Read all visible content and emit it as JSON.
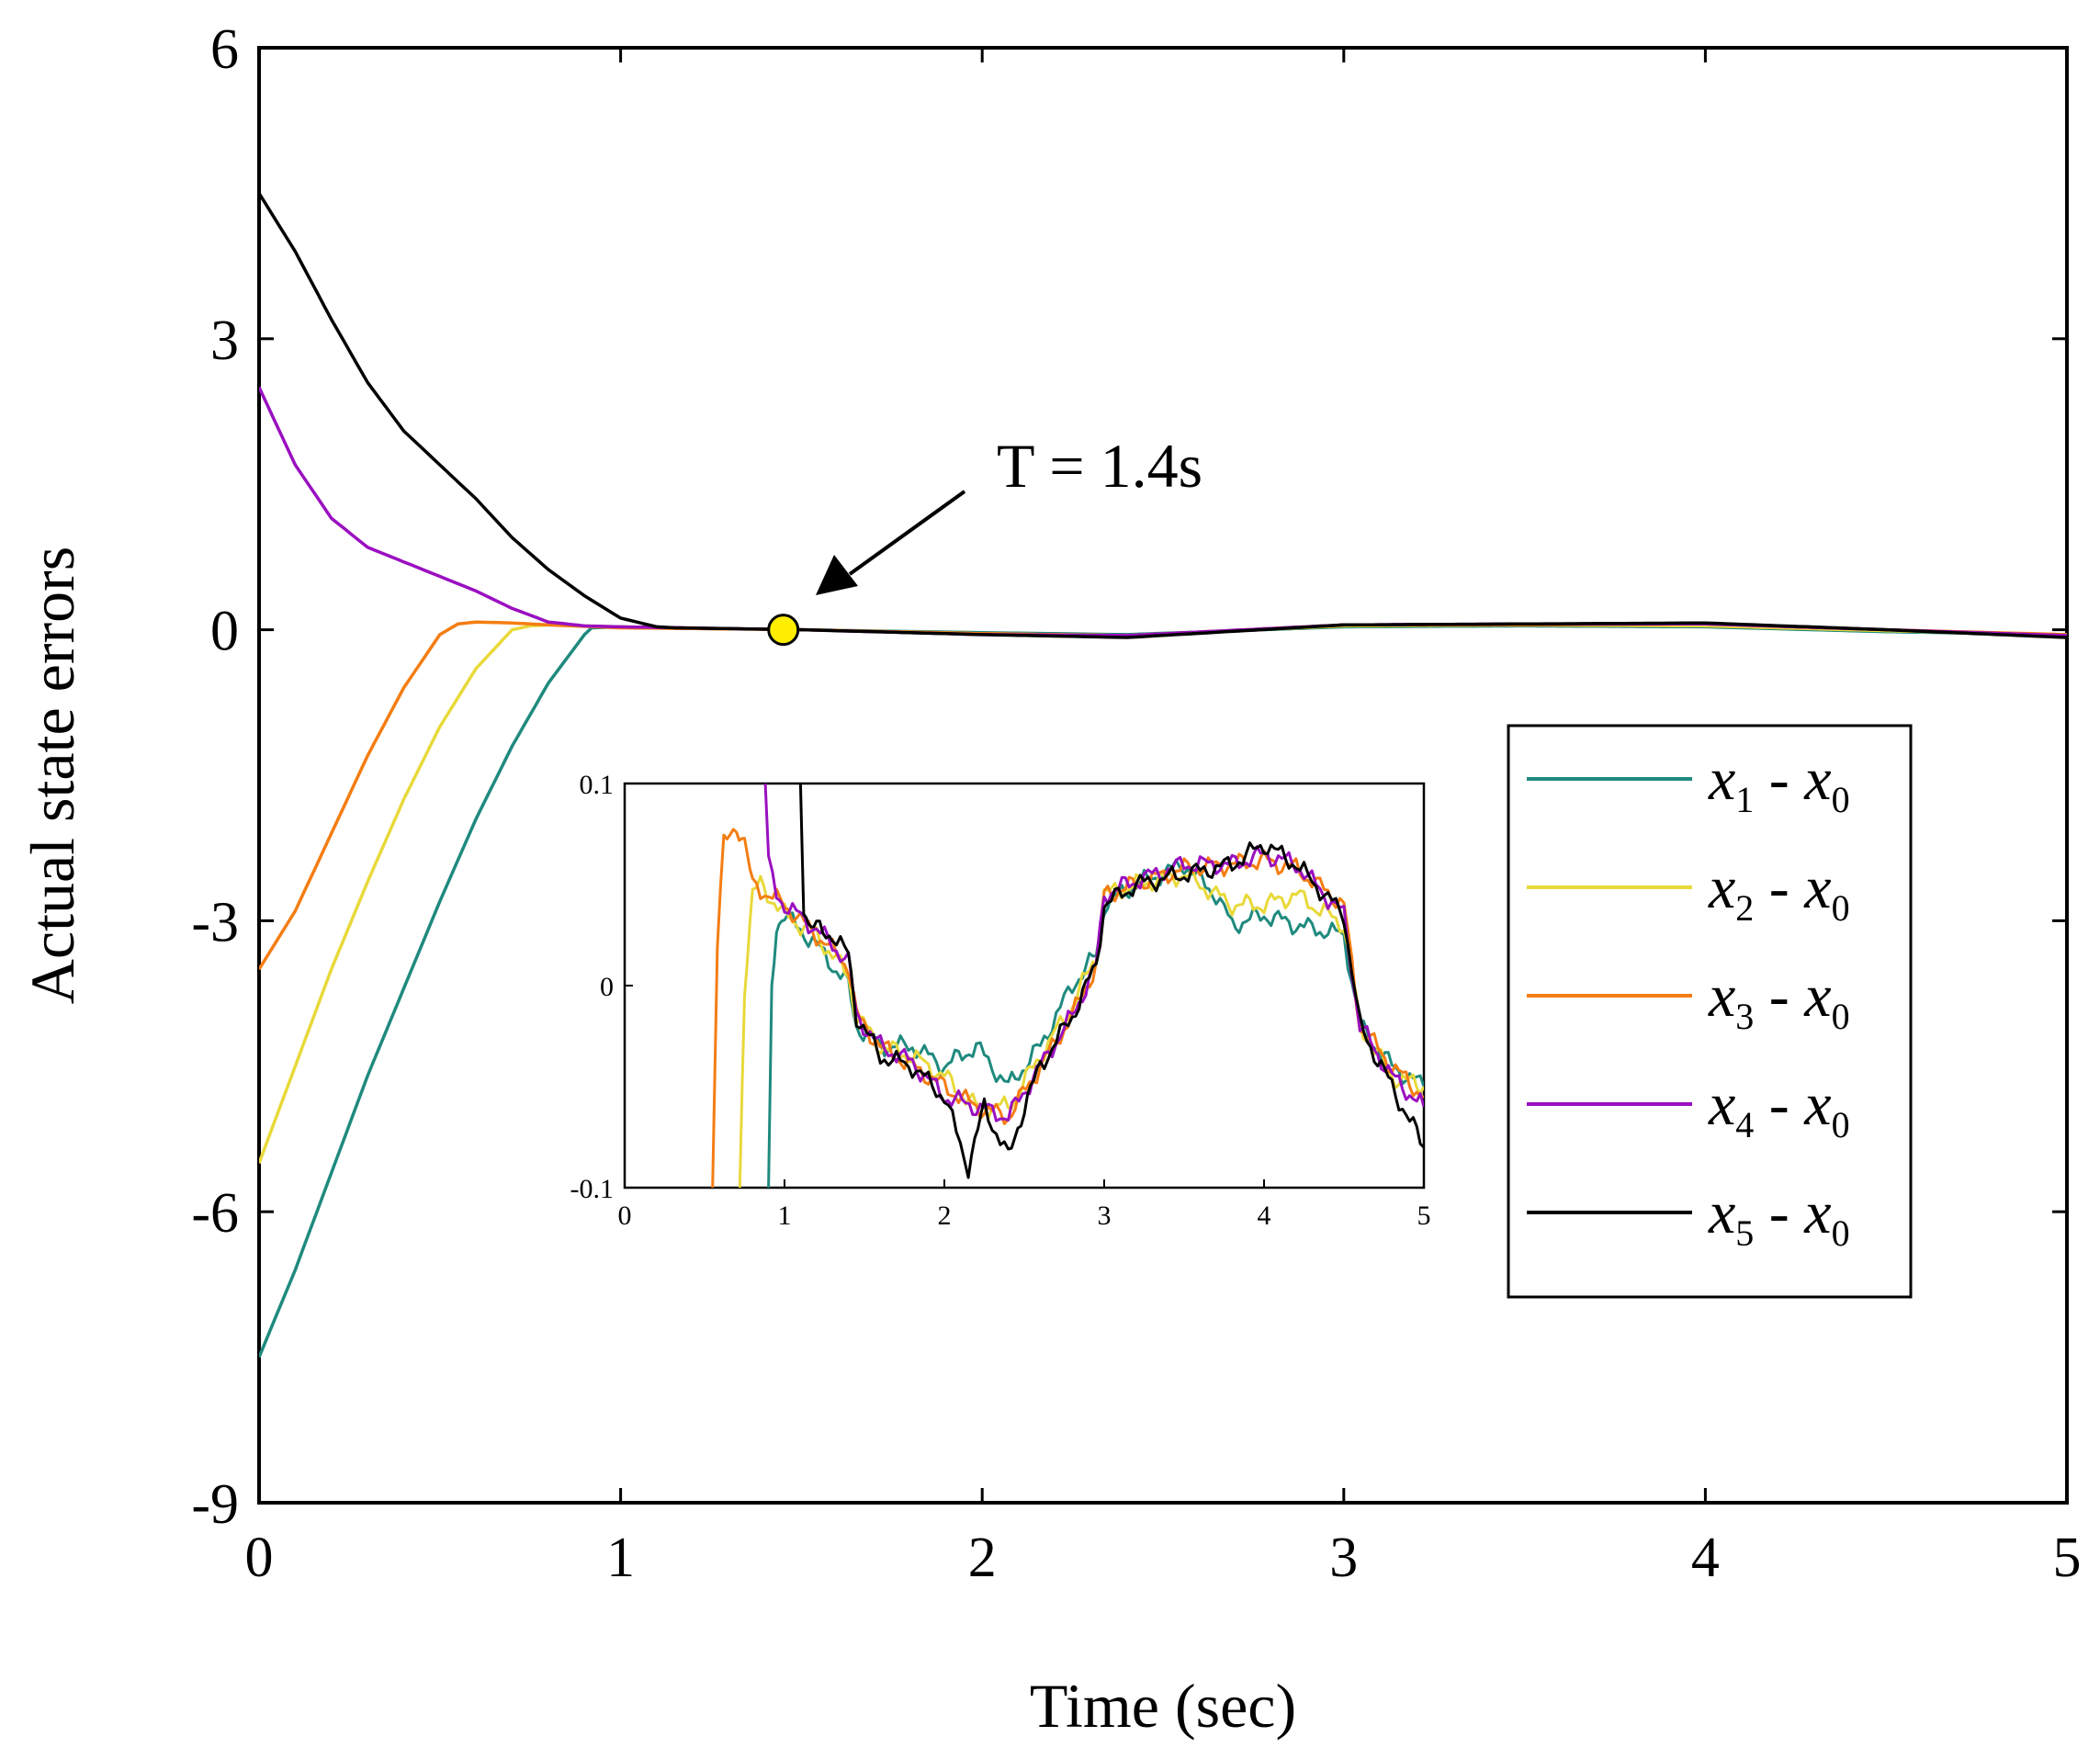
{
  "chart_data": {
    "type": "line",
    "title": "",
    "xlabel": "Time (sec)",
    "ylabel": "Actual state errors",
    "xlim": [
      0,
      5
    ],
    "ylim": [
      -9,
      6
    ],
    "xticks": [
      0,
      1,
      2,
      3,
      4,
      5
    ],
    "xtick_labels": [
      "0",
      "1",
      "2",
      "3",
      "4",
      "5"
    ],
    "yticks": [
      6,
      3,
      0,
      -3,
      -6,
      -9
    ],
    "ytick_labels": [
      "6",
      "3",
      "0",
      "-3",
      "-6",
      "-9"
    ],
    "grid": false,
    "legend_position": "right",
    "annotation": {
      "text": "T = 1.4s",
      "x": 1.45,
      "y": 0.0,
      "marker_color": "#ffee00"
    },
    "series": [
      {
        "name": "x1 - x0",
        "legend_main": "x",
        "legend_sub": "1",
        "color": "#1f8a7e",
        "x": [
          0,
          0.1,
          0.2,
          0.3,
          0.4,
          0.5,
          0.6,
          0.7,
          0.8,
          0.9,
          0.92,
          1.0,
          1.5,
          2.0,
          2.4,
          3.0,
          3.5,
          4.0,
          4.5,
          5.0
        ],
        "y": [
          -7.5,
          -6.6,
          -5.6,
          -4.6,
          -3.7,
          -2.8,
          -1.95,
          -1.2,
          -0.55,
          -0.05,
          0.02,
          0.03,
          0.0,
          -0.03,
          -0.05,
          0.03,
          0.04,
          0.03,
          -0.02,
          -0.05
        ]
      },
      {
        "name": "x2 - x0",
        "legend_main": "x",
        "legend_sub": "2",
        "color": "#e8d93a",
        "x": [
          0,
          0.1,
          0.2,
          0.3,
          0.4,
          0.5,
          0.6,
          0.7,
          0.75,
          0.8,
          1.0,
          1.5,
          2.0,
          2.4,
          3.0,
          3.5,
          4.0,
          4.5,
          5.0
        ],
        "y": [
          -5.5,
          -4.5,
          -3.5,
          -2.6,
          -1.75,
          -1.0,
          -0.4,
          0.0,
          0.04,
          0.05,
          0.03,
          0.0,
          -0.04,
          -0.06,
          0.04,
          0.05,
          0.04,
          -0.01,
          -0.05
        ]
      },
      {
        "name": "x3 - x0",
        "legend_main": "x",
        "legend_sub": "3",
        "color": "#f47d12",
        "x": [
          0,
          0.1,
          0.2,
          0.3,
          0.4,
          0.5,
          0.55,
          0.6,
          0.7,
          0.8,
          1.0,
          1.5,
          2.0,
          2.4,
          3.0,
          3.5,
          4.0,
          4.5,
          5.0
        ],
        "y": [
          -3.5,
          -2.9,
          -2.1,
          -1.3,
          -0.6,
          -0.05,
          0.06,
          0.08,
          0.07,
          0.05,
          0.02,
          0.0,
          -0.04,
          -0.06,
          0.05,
          0.05,
          0.06,
          0.0,
          -0.05
        ]
      },
      {
        "name": "x4 - x0",
        "legend_main": "x",
        "legend_sub": "4",
        "color": "#9a0fc0",
        "x": [
          0,
          0.1,
          0.2,
          0.3,
          0.4,
          0.5,
          0.6,
          0.7,
          0.8,
          0.9,
          1.0,
          1.5,
          2.0,
          2.4,
          3.0,
          3.5,
          4.0,
          4.5,
          5.0
        ],
        "y": [
          2.5,
          1.7,
          1.15,
          0.85,
          0.7,
          0.55,
          0.4,
          0.22,
          0.08,
          0.04,
          0.03,
          0.0,
          -0.05,
          -0.06,
          0.05,
          0.06,
          0.06,
          0.0,
          -0.06
        ]
      },
      {
        "name": "x5 - x0",
        "legend_main": "x",
        "legend_sub": "5",
        "color": "#000000",
        "x": [
          0,
          0.1,
          0.2,
          0.3,
          0.4,
          0.5,
          0.6,
          0.7,
          0.8,
          0.9,
          1.0,
          1.1,
          1.15,
          1.5,
          2.0,
          2.4,
          3.0,
          3.5,
          4.0,
          4.5,
          5.0
        ],
        "y": [
          4.5,
          3.9,
          3.2,
          2.55,
          2.05,
          1.7,
          1.35,
          0.95,
          0.62,
          0.35,
          0.12,
          0.03,
          0.02,
          0.0,
          -0.05,
          -0.08,
          0.05,
          0.06,
          0.07,
          0.0,
          -0.08
        ]
      }
    ],
    "inset": {
      "xlim": [
        0,
        5
      ],
      "ylim": [
        -0.1,
        0.1
      ],
      "xticks": [
        0,
        1,
        2,
        3,
        4,
        5
      ],
      "xtick_labels": [
        "0",
        "1",
        "2",
        "3",
        "4",
        "5"
      ],
      "yticks": [
        0.1,
        0,
        -0.1
      ],
      "ytick_labels": [
        "0.1",
        "0",
        "-0.1"
      ],
      "series": [
        {
          "name": "x1 - x0",
          "color": "#1f8a7e",
          "x": [
            0.9,
            0.92,
            0.95,
            1.0,
            1.2,
            1.4,
            1.45,
            1.6,
            1.8,
            2.0,
            2.2,
            2.4,
            2.6,
            2.8,
            2.95,
            3.0,
            3.2,
            3.5,
            3.7,
            3.8,
            4.0,
            4.2,
            4.5,
            4.6,
            4.8,
            5.0
          ],
          "y": [
            -0.1,
            0.0,
            0.03,
            0.035,
            0.02,
            0.0,
            -0.02,
            -0.03,
            -0.03,
            -0.04,
            -0.03,
            -0.05,
            -0.03,
            0.0,
            0.015,
            0.04,
            0.05,
            0.06,
            0.045,
            0.03,
            0.035,
            0.03,
            0.025,
            -0.02,
            -0.04,
            -0.05
          ]
        },
        {
          "name": "x2 - x0",
          "color": "#e8d93a",
          "x": [
            0.72,
            0.75,
            0.8,
            0.85,
            1.0,
            1.2,
            1.4,
            1.45,
            1.6,
            1.8,
            2.0,
            2.2,
            2.4,
            2.6,
            2.8,
            2.95,
            3.0,
            3.2,
            3.5,
            3.8,
            4.0,
            4.2,
            4.5,
            4.6,
            4.8,
            5.0
          ],
          "y": [
            -0.1,
            0.0,
            0.045,
            0.05,
            0.035,
            0.025,
            0.005,
            -0.015,
            -0.03,
            -0.035,
            -0.045,
            -0.06,
            -0.06,
            -0.035,
            -0.01,
            0.015,
            0.045,
            0.05,
            0.055,
            0.04,
            0.04,
            0.045,
            0.03,
            -0.02,
            -0.045,
            -0.05
          ]
        },
        {
          "name": "x3 - x0",
          "color": "#f47d12",
          "x": [
            0.55,
            0.58,
            0.62,
            0.7,
            0.75,
            0.8,
            1.0,
            1.2,
            1.4,
            1.45,
            1.6,
            1.8,
            2.0,
            2.2,
            2.4,
            2.6,
            2.8,
            2.95,
            3.0,
            3.2,
            3.5,
            3.8,
            4.0,
            4.2,
            4.5,
            4.6,
            4.8,
            5.0
          ],
          "y": [
            -0.1,
            0.02,
            0.07,
            0.08,
            0.07,
            0.05,
            0.04,
            0.025,
            0.01,
            -0.015,
            -0.03,
            -0.04,
            -0.05,
            -0.06,
            -0.065,
            -0.04,
            -0.015,
            0.01,
            0.045,
            0.05,
            0.058,
            0.06,
            0.062,
            0.058,
            0.04,
            -0.02,
            -0.04,
            -0.055
          ]
        },
        {
          "name": "x4 - x0",
          "color": "#9a0fc0",
          "x": [
            0.88,
            0.9,
            0.95,
            1.0,
            1.2,
            1.4,
            1.45,
            1.6,
            1.8,
            2.0,
            2.2,
            2.4,
            2.6,
            2.8,
            2.95,
            3.0,
            3.2,
            3.5,
            3.8,
            4.0,
            4.2,
            4.5,
            4.6,
            4.8,
            5.0
          ],
          "y": [
            0.1,
            0.06,
            0.045,
            0.04,
            0.028,
            0.012,
            -0.015,
            -0.03,
            -0.038,
            -0.055,
            -0.06,
            -0.065,
            -0.04,
            -0.015,
            0.01,
            0.045,
            0.052,
            0.06,
            0.06,
            0.065,
            0.06,
            0.035,
            -0.02,
            -0.045,
            -0.06
          ]
        },
        {
          "name": "x5 - x0",
          "color": "#000000",
          "x": [
            1.1,
            1.12,
            1.15,
            1.2,
            1.3,
            1.4,
            1.45,
            1.6,
            1.8,
            2.0,
            2.15,
            2.25,
            2.4,
            2.5,
            2.6,
            2.8,
            2.95,
            3.0,
            3.2,
            3.5,
            3.8,
            4.0,
            4.2,
            4.5,
            4.6,
            4.8,
            5.0
          ],
          "y": [
            0.1,
            0.04,
            0.03,
            0.028,
            0.025,
            0.015,
            -0.015,
            -0.035,
            -0.04,
            -0.055,
            -0.09,
            -0.06,
            -0.085,
            -0.06,
            -0.04,
            -0.015,
            0.01,
            0.04,
            0.05,
            0.055,
            0.06,
            0.07,
            0.06,
            0.035,
            -0.02,
            -0.05,
            -0.08
          ]
        }
      ]
    }
  }
}
